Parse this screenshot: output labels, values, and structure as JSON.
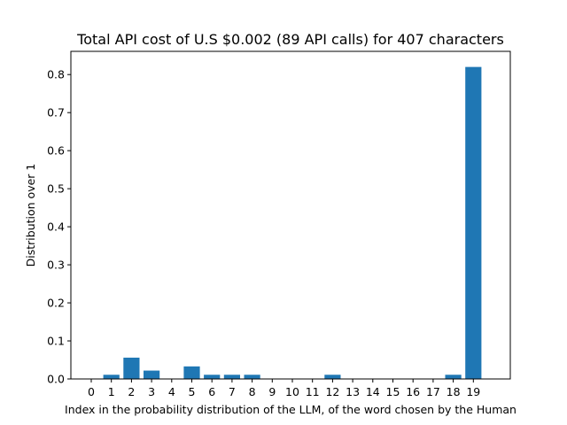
{
  "chart_data": {
    "type": "bar",
    "title": "Total API cost of U.S $0.002 (89 API calls) for 407 characters",
    "xlabel": "Index in the probability distribution of the LLM, of the word chosen by the Human",
    "ylabel": "Distribution over 1",
    "categories": [
      "0",
      "1",
      "2",
      "3",
      "4",
      "5",
      "6",
      "7",
      "8",
      "9",
      "10",
      "11",
      "12",
      "13",
      "14",
      "15",
      "16",
      "17",
      "18",
      "19"
    ],
    "values": [
      0.0,
      0.011,
      0.056,
      0.022,
      0.0,
      0.033,
      0.011,
      0.011,
      0.011,
      0.0,
      0.0,
      0.0,
      0.011,
      0.0,
      0.0,
      0.0,
      0.0,
      0.0,
      0.011,
      0.82
    ],
    "ylim": [
      0,
      0.861
    ],
    "yticks": [
      "0.0",
      "0.1",
      "0.2",
      "0.3",
      "0.4",
      "0.5",
      "0.6",
      "0.7",
      "0.8"
    ],
    "grid": false,
    "bar_color": "#1f77b4"
  }
}
